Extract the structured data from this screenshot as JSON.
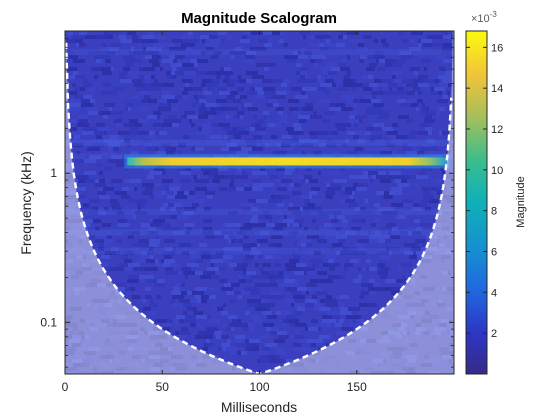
{
  "chart_data": {
    "type": "heatmap",
    "title": "Magnitude Scalogram",
    "xlabel": "Milliseconds",
    "ylabel": "Frequency (kHz)",
    "xlim": [
      0,
      200
    ],
    "ylim_khz": [
      0.045,
      9
    ],
    "y_scale": "log",
    "x_ticks": [
      0,
      50,
      100,
      150
    ],
    "x_tick_labels": [
      "0",
      "50",
      "100",
      "150"
    ],
    "y_ticks": [
      0.1,
      1
    ],
    "y_tick_labels": [
      "0.1",
      "1"
    ],
    "colorbar": {
      "label": "Magnitude",
      "exponent_label": "×10",
      "exponent_power": "-3",
      "ticks": [
        2,
        4,
        6,
        8,
        10,
        12,
        14,
        16
      ],
      "tick_labels": [
        "2",
        "4",
        "6",
        "8",
        "10",
        "12",
        "14",
        "16"
      ],
      "range": [
        0,
        16.8
      ],
      "colormap": "parula"
    },
    "features": {
      "tone_band": {
        "frequency_khz": 1.2,
        "start_ms": 32,
        "end_ms": 196,
        "peak_magnitude_e3": 16.5
      },
      "cone_of_influence": {
        "min_frequency_khz": 0.045,
        "min_at_ms": 100,
        "style": "white dashed"
      }
    }
  }
}
